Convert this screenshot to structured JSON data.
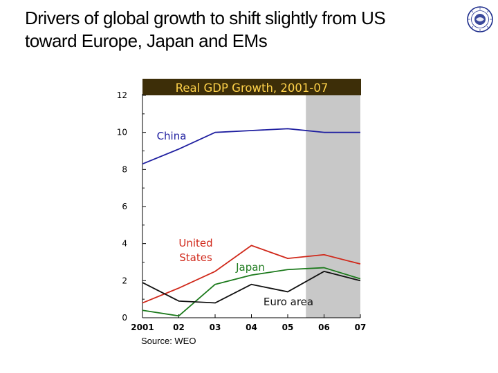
{
  "slide": {
    "title_line1": "Drivers of global growth to shift slightly from US",
    "title_line2": "toward Europe, Japan and EMs",
    "source": "Source: WEO",
    "logo_name": "imf-seal-logo"
  },
  "colors": {
    "china": "#1f1fa0",
    "us": "#d0281a",
    "japan": "#1c7a1c",
    "euro": "#111111",
    "title_bg": "#3d2e08",
    "title_text": "#ffd24a",
    "forecast_shade": "#c8c8c8"
  },
  "chart_data": {
    "type": "line",
    "title": "Real GDP Growth, 2001-07",
    "x": [
      2001,
      2002,
      2003,
      2004,
      2005,
      2006,
      2007
    ],
    "x_tick_labels": [
      "2001",
      "02",
      "03",
      "04",
      "05",
      "06",
      "07"
    ],
    "y_ticks": [
      0,
      2,
      4,
      6,
      8,
      10,
      12
    ],
    "ylim": [
      0,
      12
    ],
    "forecast_shaded_from": 2005.5,
    "series": [
      {
        "key": "china",
        "name": "China",
        "values": [
          8.3,
          9.1,
          10.0,
          10.1,
          10.2,
          10.0,
          10.0
        ]
      },
      {
        "key": "us",
        "name": "United States",
        "values": [
          0.8,
          1.6,
          2.5,
          3.9,
          3.2,
          3.4,
          2.9
        ]
      },
      {
        "key": "japan",
        "name": "Japan",
        "values": [
          0.4,
          0.1,
          1.8,
          2.3,
          2.6,
          2.7,
          2.1
        ]
      },
      {
        "key": "euro",
        "name": "Euro area",
        "values": [
          1.9,
          0.9,
          0.8,
          1.8,
          1.4,
          2.5,
          2.0
        ]
      }
    ],
    "labels": {
      "china": "China",
      "us_line1": "United",
      "us_line2": "States",
      "japan": "Japan",
      "euro": "Euro area"
    }
  }
}
